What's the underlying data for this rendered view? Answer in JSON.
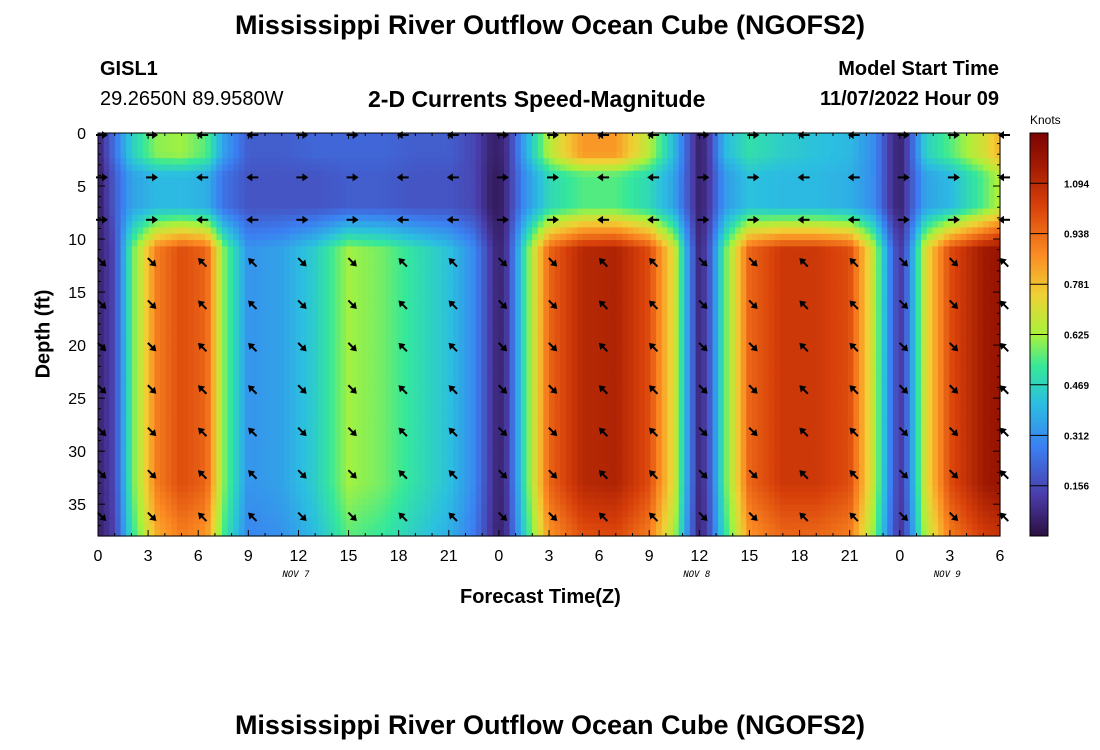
{
  "title": "Mississippi River Outflow Ocean Cube (NGOFS2)",
  "title_repeat": "Mississippi River Outflow Ocean Cube (NGOFS2)",
  "station": {
    "id": "GISL1",
    "coords": "29.2650N  89.9580W"
  },
  "subtitle": "2-D Currents Speed-Magnitude",
  "model": {
    "label": "Model Start Time",
    "value": "11/07/2022 Hour 09"
  },
  "colorbar": {
    "unit": "Knots",
    "ticks": [
      "1.094",
      "0.938",
      "0.781",
      "0.625",
      "0.469",
      "0.312",
      "0.156"
    ],
    "max": 1.25
  },
  "chart_data": {
    "type": "heatmap",
    "xlabel": "Forecast Time(Z)",
    "ylabel": "Depth (ft)",
    "x_range_hours": [
      0,
      54
    ],
    "x_tick_labels": [
      "0",
      "3",
      "6",
      "9",
      "12",
      "15",
      "18",
      "21",
      "0",
      "3",
      "6",
      "9",
      "12",
      "15",
      "18",
      "21",
      "0",
      "3",
      "6"
    ],
    "date_labels": [
      {
        "text": "NOV 7",
        "hour": 12
      },
      {
        "text": "NOV 8",
        "hour": 36
      },
      {
        "text": "NOV 9",
        "hour": 51
      }
    ],
    "ylim": [
      0,
      38
    ],
    "y_ticks": [
      0,
      5,
      10,
      15,
      20,
      25,
      30,
      35
    ],
    "speed_profile_knots": {
      "hours": [
        0,
        1,
        2,
        3.5,
        5,
        6.5,
        7.5,
        9,
        11,
        13,
        15,
        17,
        19,
        21,
        22.5,
        23.5,
        24,
        24.5,
        25.5,
        27,
        29,
        31,
        33,
        34.5,
        35.5,
        36,
        36.5,
        37.5,
        39,
        41,
        43,
        45,
        46.5,
        47.5,
        48,
        48.5,
        49.5,
        51,
        53,
        54
      ],
      "surface": [
        0.05,
        0.25,
        0.45,
        0.6,
        0.62,
        0.55,
        0.35,
        0.2,
        0.2,
        0.22,
        0.22,
        0.22,
        0.2,
        0.2,
        0.15,
        0.06,
        0.05,
        0.1,
        0.35,
        0.65,
        0.85,
        0.85,
        0.65,
        0.4,
        0.15,
        0.05,
        0.1,
        0.4,
        0.5,
        0.45,
        0.42,
        0.4,
        0.3,
        0.1,
        0.05,
        0.15,
        0.45,
        0.55,
        0.7,
        0.8
      ],
      "upper": [
        0.03,
        0.2,
        0.35,
        0.4,
        0.4,
        0.38,
        0.25,
        0.18,
        0.18,
        0.18,
        0.2,
        0.2,
        0.18,
        0.18,
        0.15,
        0.05,
        0.03,
        0.1,
        0.3,
        0.48,
        0.55,
        0.55,
        0.48,
        0.35,
        0.15,
        0.05,
        0.1,
        0.33,
        0.42,
        0.4,
        0.4,
        0.38,
        0.3,
        0.1,
        0.05,
        0.15,
        0.35,
        0.4,
        0.55,
        0.65
      ],
      "deep": [
        0.05,
        0.15,
        0.55,
        0.9,
        1.0,
        0.95,
        0.6,
        0.32,
        0.35,
        0.45,
        0.62,
        0.58,
        0.5,
        0.42,
        0.3,
        0.12,
        0.05,
        0.12,
        0.5,
        0.95,
        1.1,
        1.12,
        1.0,
        0.7,
        0.25,
        0.06,
        0.15,
        0.55,
        0.95,
        1.05,
        1.05,
        1.0,
        0.65,
        0.25,
        0.1,
        0.25,
        0.7,
        1.0,
        1.15,
        1.18
      ]
    }
  }
}
